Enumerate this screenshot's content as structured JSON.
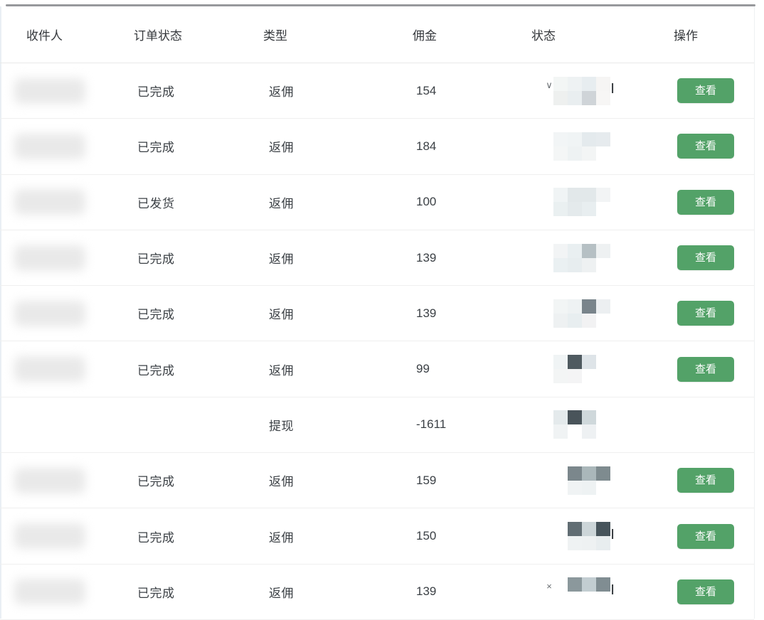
{
  "colors": {
    "button_green": "#53a268",
    "button_text": "#ffffff",
    "top_border": "#97999c",
    "row_divider": "#efefef",
    "text": "#3b4045"
  },
  "table": {
    "columns": [
      {
        "key": "recipient",
        "label": "收件人"
      },
      {
        "key": "order_status",
        "label": "订单状态"
      },
      {
        "key": "type",
        "label": "类型"
      },
      {
        "key": "commission",
        "label": "佣金"
      },
      {
        "key": "status",
        "label": "状态"
      },
      {
        "key": "action",
        "label": "操作"
      }
    ],
    "action_label": "查看",
    "rows": [
      {
        "order_status": "已完成",
        "type": "返佣",
        "commission": "154",
        "recipient_censored": true,
        "has_action": true,
        "censor": {
          "prefix": "∨",
          "suffix": "|",
          "top": [
            "#f3f6f5",
            "#eef2f3",
            "#e7edf0",
            "#f6f5f4"
          ],
          "bottom": [
            "#eef0ef",
            "#e9eef0",
            "#cfd4d8",
            "#f7f6f5"
          ]
        }
      },
      {
        "order_status": "已完成",
        "type": "返佣",
        "commission": "184",
        "recipient_censored": true,
        "has_action": true,
        "censor": {
          "prefix": "",
          "suffix": "",
          "top": [
            "#f2f5f6",
            "#f0f4f5",
            "#e4eaed",
            "#e6ebee"
          ],
          "bottom": [
            "#f4f6f6",
            "#eef2f3",
            "#f3f5f5",
            "#ffffff"
          ]
        }
      },
      {
        "order_status": "已发货",
        "type": "返佣",
        "commission": "100",
        "recipient_censored": true,
        "has_action": true,
        "censor": {
          "prefix": "",
          "suffix": "",
          "top": [
            "#f0f4f5",
            "#e2e8ea",
            "#e2e8ea",
            "#f2f4f5"
          ],
          "bottom": [
            "#eaf0f1",
            "#e4eaec",
            "#e8eef0",
            "#ffffff"
          ]
        }
      },
      {
        "order_status": "已完成",
        "type": "返佣",
        "commission": "139",
        "recipient_censored": true,
        "has_action": true,
        "censor": {
          "prefix": "",
          "suffix": "",
          "top": [
            "#f2f4f5",
            "#e9eff1",
            "#b6c0c4",
            "#eef1f2"
          ],
          "bottom": [
            "#eaf0f2",
            "#e7edef",
            "#eef1f2",
            "#ffffff"
          ]
        }
      },
      {
        "order_status": "已完成",
        "type": "返佣",
        "commission": "139",
        "recipient_censored": true,
        "has_action": true,
        "censor": {
          "prefix": "",
          "suffix": "",
          "top": [
            "#f2f5f5",
            "#eef2f3",
            "#79848b",
            "#eceff1"
          ],
          "bottom": [
            "#eef1f2",
            "#e8eef0",
            "#f2f2f3",
            "#ffffff"
          ]
        }
      },
      {
        "order_status": "已完成",
        "type": "返佣",
        "commission": "99",
        "recipient_censored": true,
        "has_action": true,
        "censor": {
          "prefix": "",
          "suffix": "",
          "top": [
            "#f0f4f5",
            "#4f5a60",
            "#dee4e8",
            "#ffffff"
          ],
          "bottom": [
            "#f3f5f5",
            "#f4f4f5",
            "#ffffff",
            "#ffffff"
          ]
        }
      },
      {
        "order_status": "",
        "type": "提现",
        "commission": "-1611",
        "recipient_censored": false,
        "has_action": false,
        "censor": {
          "prefix": "",
          "suffix": "",
          "top": [
            "#e4eaec",
            "#49545a",
            "#cfd8db",
            "#ffffff"
          ],
          "bottom": [
            "#f0f3f4",
            "#ffffff",
            "#eef1f3",
            "#ffffff"
          ]
        }
      },
      {
        "order_status": "已完成",
        "type": "返佣",
        "commission": "159",
        "recipient_censored": true,
        "has_action": true,
        "censor": {
          "prefix": "",
          "suffix": "",
          "top": [
            "#ffffff",
            "#7b878c",
            "#aab7ba",
            "#7e8b8f"
          ],
          "bottom": [
            "#ffffff",
            "#f0f3f4",
            "#eef2f3",
            "#ffffff"
          ]
        }
      },
      {
        "order_status": "已完成",
        "type": "返佣",
        "commission": "150",
        "recipient_censored": true,
        "has_action": true,
        "censor": {
          "prefix": "",
          "suffix": "|",
          "top": [
            "#ffffff",
            "#616d73",
            "#ccd5d8",
            "#47545b"
          ],
          "bottom": [
            "#ffffff",
            "#eff2f3",
            "#eef1f2",
            "#e8edef"
          ]
        }
      },
      {
        "order_status": "已完成",
        "type": "返佣",
        "commission": "139",
        "recipient_censored": true,
        "has_action": true,
        "censor": {
          "prefix": "×",
          "suffix": "|",
          "top": [
            "#ffffff",
            "#8b989c",
            "#c2cdd1",
            "#808d92"
          ],
          "bottom": [
            "#ffffff",
            "#ffffff",
            "#ffffff",
            "#ffffff"
          ]
        }
      }
    ]
  }
}
